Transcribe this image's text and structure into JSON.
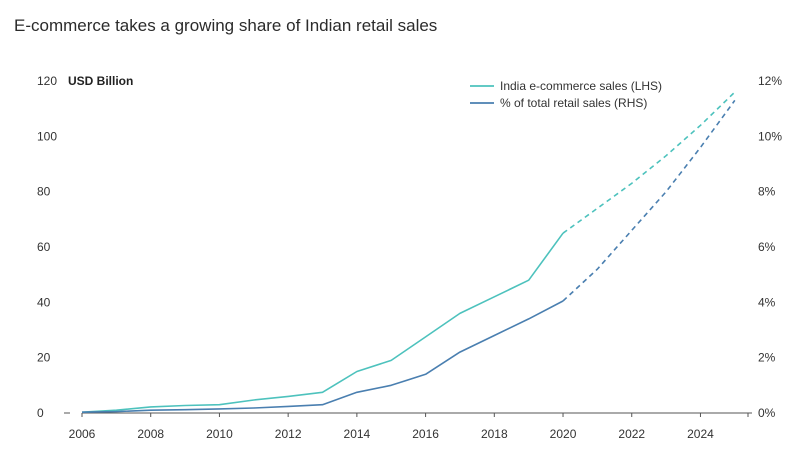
{
  "title": "E-commerce takes a growing share of Indian retail sales",
  "chart_data": {
    "type": "line",
    "y_left_label": "USD Billion",
    "y_left_range": [
      0,
      120
    ],
    "y_left_ticks": [
      "0",
      "20",
      "40",
      "60",
      "80",
      "100",
      "120"
    ],
    "y_right_range": [
      0,
      12
    ],
    "y_right_ticks": [
      "0%",
      "2%",
      "4%",
      "6%",
      "8%",
      "10%",
      "12%"
    ],
    "x_range": [
      2006,
      2025.5
    ],
    "x_ticks": [
      "2006",
      "2008",
      "2010",
      "2012",
      "2014",
      "2016",
      "2018",
      "2020",
      "2022",
      "2024"
    ],
    "legend_position": "top-right",
    "series": [
      {
        "name": "India e-commerce sales (LHS)",
        "axis": "left",
        "color": "#4dc2bd",
        "actual": {
          "x": [
            2006,
            2007,
            2008,
            2009,
            2010,
            2011,
            2012,
            2013,
            2014,
            2015,
            2016,
            2017,
            2018,
            2019,
            2020
          ],
          "y": [
            0.3,
            1,
            2.2,
            2.7,
            3,
            4.7,
            6,
            7.5,
            15,
            19,
            27.5,
            36,
            42,
            48,
            65
          ]
        },
        "forecast": {
          "x": [
            2020,
            2021,
            2022,
            2023,
            2024,
            2025
          ],
          "y": [
            65,
            74,
            83,
            93,
            104,
            116
          ]
        }
      },
      {
        "name": "% of total retail sales (RHS)",
        "axis": "right",
        "color": "#4a7fb0",
        "actual": {
          "x": [
            2006,
            2007,
            2008,
            2009,
            2010,
            2011,
            2012,
            2013,
            2014,
            2015,
            2016,
            2017,
            2018,
            2019,
            2020
          ],
          "y": [
            0.03,
            0.05,
            0.1,
            0.12,
            0.15,
            0.18,
            0.24,
            0.3,
            0.75,
            1,
            1.4,
            2.2,
            2.8,
            3.4,
            4.05
          ]
        },
        "forecast": {
          "x": [
            2020,
            2021,
            2022,
            2023,
            2024,
            2025
          ],
          "y": [
            4.05,
            5.2,
            6.6,
            8,
            9.6,
            11.3
          ]
        }
      }
    ]
  }
}
